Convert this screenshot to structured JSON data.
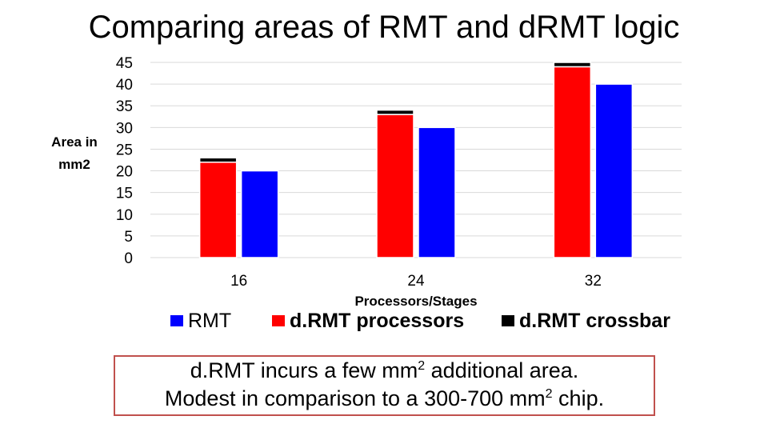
{
  "title": "Comparing areas of RMT and dRMT logic",
  "chart_data": {
    "type": "bar",
    "title": "Comparing areas of RMT and dRMT logic",
    "xlabel": "Processors/Stages",
    "ylabel": "Area in mm2",
    "ylim": [
      0,
      45
    ],
    "yticks": [
      0,
      5,
      10,
      15,
      20,
      25,
      30,
      35,
      40,
      45
    ],
    "categories": [
      "16",
      "24",
      "32"
    ],
    "stacked_group": [
      "d.RMT processors",
      "d.RMT crossbar"
    ],
    "series": [
      {
        "name": "d.RMT processors",
        "values": [
          22,
          33,
          44
        ],
        "color": "#ff0000"
      },
      {
        "name": "d.RMT crossbar",
        "values": [
          1,
          1,
          1
        ],
        "color": "#000000"
      },
      {
        "name": "RMT",
        "values": [
          20,
          30,
          40
        ],
        "color": "#0000ff"
      }
    ],
    "grid": true,
    "legend_position": "bottom"
  },
  "legend": {
    "rmt": "RMT",
    "processors": "d.RMT processors",
    "crossbar": "d.RMT crossbar"
  },
  "note": {
    "line1_pre": "d.RMT incurs a few mm",
    "line1_sup": "2",
    "line1_post": " additional area.",
    "line2_pre": "Modest in comparison to a 300-700 mm",
    "line2_sup": "2",
    "line2_post": " chip."
  }
}
